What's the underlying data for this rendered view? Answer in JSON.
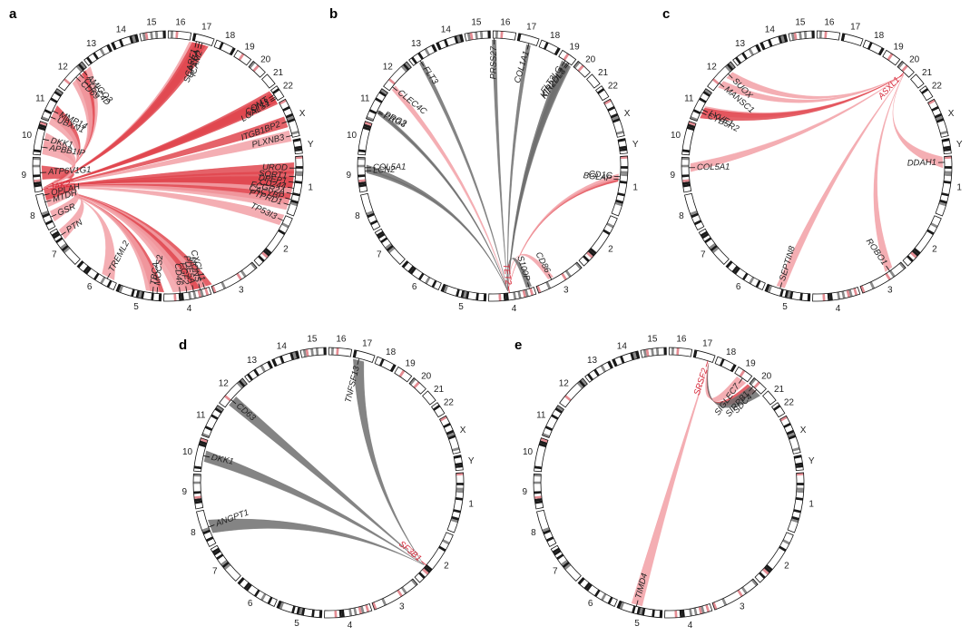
{
  "colors": {
    "red": "#e0464f",
    "pink": "#f2a0a6",
    "grey": "#6e6e6e",
    "text_red": "#d62839"
  },
  "chromosomes": [
    "1",
    "2",
    "3",
    "4",
    "5",
    "6",
    "7",
    "8",
    "9",
    "10",
    "11",
    "12",
    "13",
    "14",
    "15",
    "16",
    "17",
    "18",
    "19",
    "20",
    "21",
    "22",
    "X",
    "Y"
  ],
  "panels": [
    {
      "letter": "a",
      "hub": {
        "name": "JAK2",
        "chr": "9",
        "pos": 0.05,
        "highlight": true
      },
      "partners": [
        {
          "name": "AMIGO3",
          "chr": "12",
          "pos": 0.85,
          "color": "pink",
          "w": 6
        },
        {
          "name": "CLEC4D",
          "chr": "12",
          "pos": 0.7,
          "color": "red",
          "w": 5
        },
        {
          "name": "CD69",
          "chr": "12",
          "pos": 0.55,
          "color": "pink",
          "w": 5
        },
        {
          "name": "MMP14",
          "chr": "11",
          "pos": 0.35,
          "color": "red",
          "w": 5
        },
        {
          "name": "UBXN1",
          "chr": "11",
          "pos": 0.15,
          "color": "pink",
          "w": 5
        },
        {
          "name": "SCARF1",
          "chr": "17",
          "pos": 0.2,
          "color": "pink",
          "w": 5
        },
        {
          "name": "GP1BA",
          "chr": "17",
          "pos": 0.35,
          "color": "red",
          "w": 5
        },
        {
          "name": "ICAM2",
          "chr": "17",
          "pos": 0.5,
          "color": "red",
          "w": 5
        },
        {
          "name": "COMT",
          "chr": "22",
          "pos": 0.45,
          "color": "red",
          "w": 4
        },
        {
          "name": "ST13",
          "chr": "22",
          "pos": 0.65,
          "color": "red",
          "w": 4
        },
        {
          "name": "LGALS1",
          "chr": "22",
          "pos": 0.8,
          "color": "red",
          "w": 4
        },
        {
          "name": "ITGB1BP2",
          "chr": "X",
          "pos": 0.55,
          "color": "red",
          "w": 4
        },
        {
          "name": "PLXNB3",
          "chr": "X",
          "pos": 0.95,
          "color": "pink",
          "w": 4
        },
        {
          "name": "UROD",
          "chr": "1",
          "pos": 0.2,
          "color": "red",
          "w": 4
        },
        {
          "name": "SORT1",
          "chr": "1",
          "pos": 0.35,
          "color": "red",
          "w": 4
        },
        {
          "name": "DPEP1",
          "chr": "1",
          "pos": 0.45,
          "color": "red",
          "w": 4
        },
        {
          "name": "CD244",
          "chr": "1",
          "pos": 0.55,
          "color": "red",
          "w": 4
        },
        {
          "name": "FCGR2A",
          "chr": "1",
          "pos": 0.65,
          "color": "pink",
          "w": 4
        },
        {
          "name": "CACYBP",
          "chr": "1",
          "pos": 0.75,
          "color": "red",
          "w": 4
        },
        {
          "name": "PTPRD1",
          "chr": "1",
          "pos": 0.85,
          "color": "pink",
          "w": 4
        },
        {
          "name": "TP53I3",
          "chr": "2",
          "pos": 0.1,
          "color": "pink",
          "w": 4
        },
        {
          "name": "CXCL11",
          "chr": "4",
          "pos": 0.1,
          "color": "red",
          "w": 6
        },
        {
          "name": "MONS",
          "chr": "4",
          "pos": 0.2,
          "color": "pink",
          "w": 5
        },
        {
          "name": "PDE5A",
          "chr": "4",
          "pos": 0.35,
          "color": "red",
          "w": 5
        },
        {
          "name": "FGF2",
          "chr": "4",
          "pos": 0.5,
          "color": "pink",
          "w": 5
        },
        {
          "name": "CD46",
          "chr": "4",
          "pos": 0.65,
          "color": "pink",
          "w": 5
        },
        {
          "name": "MOCS2",
          "chr": "5",
          "pos": 0.1,
          "color": "red",
          "w": 5
        },
        {
          "name": "TBCA",
          "chr": "5",
          "pos": 0.2,
          "color": "pink",
          "w": 5
        },
        {
          "name": "TREML2",
          "chr": "6",
          "pos": 0.25,
          "color": "pink",
          "w": 5
        },
        {
          "name": "PTN",
          "chr": "7",
          "pos": 0.8,
          "color": "pink",
          "w": 4
        },
        {
          "name": "GSR",
          "chr": "8",
          "pos": 0.3,
          "color": "pink",
          "w": 4
        },
        {
          "name": "MTDH",
          "chr": "8",
          "pos": 0.75,
          "color": "pink",
          "w": 4
        },
        {
          "name": "OPLAH",
          "chr": "8",
          "pos": 0.95,
          "color": "red",
          "w": 4
        },
        {
          "name": "ATP6V1G1",
          "chr": "9",
          "pos": 0.55,
          "color": "red",
          "w": 5
        },
        {
          "name": "APBB1IP",
          "chr": "10",
          "pos": 0.25,
          "color": "pink",
          "w": 5
        },
        {
          "name": "DKK1",
          "chr": "10",
          "pos": 0.5,
          "color": "pink",
          "w": 5
        }
      ]
    },
    {
      "letter": "b",
      "hub": {
        "name": "TET2",
        "chr": "4",
        "pos": 0.55,
        "highlight": true
      },
      "partners": [
        {
          "name": "FLT3",
          "chr": "13",
          "pos": 0.3,
          "color": "grey",
          "w": 1.5
        },
        {
          "name": "CLEC4C",
          "chr": "12",
          "pos": 0.15,
          "color": "pink",
          "w": 2
        },
        {
          "name": "PRG3",
          "chr": "11",
          "pos": 0.3,
          "color": "grey",
          "w": 1
        },
        {
          "name": "PRG2",
          "chr": "11",
          "pos": 0.35,
          "color": "grey",
          "w": 1
        },
        {
          "name": "COL5A1",
          "chr": "9",
          "pos": 0.7,
          "color": "grey",
          "w": 2
        },
        {
          "name": "LCN2",
          "chr": "9",
          "pos": 0.6,
          "color": "grey",
          "w": 1.5
        },
        {
          "name": "PRSS27",
          "chr": "16",
          "pos": 0.05,
          "color": "grey",
          "w": 1.5
        },
        {
          "name": "COL1A1",
          "chr": "17",
          "pos": 0.6,
          "color": "grey",
          "w": 1.5
        },
        {
          "name": "KIR2DL2",
          "chr": "19",
          "pos": 0.7,
          "color": "grey",
          "w": 2.5
        },
        {
          "name": "KIR2DL3",
          "chr": "19",
          "pos": 0.8,
          "color": "grey",
          "w": 2.5
        },
        {
          "name": "FLT3LG",
          "chr": "19",
          "pos": 0.5,
          "color": "grey",
          "w": 2
        },
        {
          "name": "BGLAP",
          "chr": "1",
          "pos": 0.4,
          "color": "red",
          "w": 1.5
        },
        {
          "name": "CD1C",
          "chr": "1",
          "pos": 0.35,
          "color": "pink",
          "w": 2
        },
        {
          "name": "CD86",
          "chr": "3",
          "pos": 0.65,
          "color": "pink",
          "w": 2
        },
        {
          "name": "S100P",
          "chr": "4",
          "pos": 0.1,
          "color": "grey",
          "w": 2
        }
      ]
    },
    {
      "letter": "c",
      "hub": {
        "name": "ASXL1",
        "chr": "20",
        "pos": 0.55,
        "highlight": true
      },
      "partners": [
        {
          "name": "SUOX",
          "chr": "12",
          "pos": 0.7,
          "color": "pink",
          "w": 3
        },
        {
          "name": "MANSC1",
          "chr": "12",
          "pos": 0.3,
          "color": "pink",
          "w": 3
        },
        {
          "name": "LYVE1",
          "chr": "11",
          "pos": 0.4,
          "color": "pink",
          "w": 3
        },
        {
          "name": "CYB5R2",
          "chr": "11",
          "pos": 0.3,
          "color": "red",
          "w": 4
        },
        {
          "name": "COL5A1",
          "chr": "9",
          "pos": 0.7,
          "color": "pink",
          "w": 3
        },
        {
          "name": "DDAH1",
          "chr": "1",
          "pos": 0.1,
          "color": "pink",
          "w": 4
        },
        {
          "name": "SEPTIN8",
          "chr": "5",
          "pos": 0.7,
          "color": "pink",
          "w": 3
        },
        {
          "name": "ROBO1",
          "chr": "3",
          "pos": 0.3,
          "color": "pink",
          "w": 3
        }
      ]
    },
    {
      "letter": "d",
      "hub": {
        "name": "SF3B1",
        "chr": "2",
        "pos": 0.7,
        "highlight": true
      },
      "partners": [
        {
          "name": "CD63",
          "chr": "12",
          "pos": 0.3,
          "color": "grey",
          "w": 4
        },
        {
          "name": "TNFSF13",
          "chr": "17",
          "pos": 0.3,
          "color": "grey",
          "w": 4
        },
        {
          "name": "DKK1",
          "chr": "10",
          "pos": 0.5,
          "color": "grey",
          "w": 4
        },
        {
          "name": "ANGPT1",
          "chr": "8",
          "pos": 0.5,
          "color": "grey",
          "w": 5
        }
      ]
    },
    {
      "letter": "e",
      "hub": {
        "name": "SRSF2",
        "chr": "17",
        "pos": 0.75,
        "highlight": true
      },
      "partners": [
        {
          "name": "SIGLEC7",
          "chr": "19",
          "pos": 0.6,
          "color": "pink",
          "w": 4
        },
        {
          "name": "SIRPB1",
          "chr": "20",
          "pos": 0.3,
          "color": "red",
          "w": 4
        },
        {
          "name": "SDC4",
          "chr": "20",
          "pos": 0.6,
          "color": "grey",
          "w": 5
        },
        {
          "name": "TIMD4",
          "chr": "5",
          "pos": 0.6,
          "color": "pink",
          "w": 4
        }
      ]
    }
  ]
}
